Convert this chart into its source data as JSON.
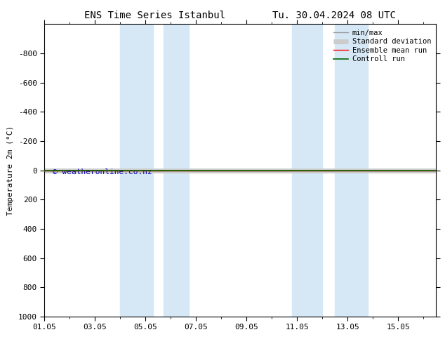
{
  "title_left": "ENS Time Series Istanbul",
  "title_right": "Tu. 30.04.2024 08 UTC",
  "ylabel": "Temperature 2m (°C)",
  "watermark": "© weatheronline.co.nz",
  "bg_color": "#ffffff",
  "plot_bg_color": "#ffffff",
  "shade_color": "#d6e8f5",
  "ylim_bottom": 1000,
  "ylim_top": -1000,
  "yticks": [
    -800,
    -600,
    -400,
    -200,
    0,
    200,
    400,
    600,
    800,
    1000
  ],
  "xlim": [
    0.0,
    15.5
  ],
  "xtick_labels": [
    "01.05",
    "03.05",
    "05.05",
    "07.05",
    "09.05",
    "11.05",
    "13.05",
    "15.05"
  ],
  "xtick_positions": [
    0,
    2,
    4,
    6,
    8,
    10,
    12,
    14
  ],
  "shaded_bands": [
    [
      3.0,
      4.3
    ],
    [
      4.7,
      5.7
    ],
    [
      9.8,
      11.0
    ],
    [
      11.5,
      12.8
    ]
  ],
  "legend_items": [
    {
      "label": "min/max",
      "color": "#999999",
      "lw": 1.0
    },
    {
      "label": "Standard deviation",
      "color": "#cccccc",
      "lw": 5
    },
    {
      "label": "Ensemble mean run",
      "color": "#ff0000",
      "lw": 1.0
    },
    {
      "label": "Controll run",
      "color": "#006600",
      "lw": 1.2
    }
  ],
  "title_fontsize": 10,
  "tick_fontsize": 8,
  "ylabel_fontsize": 8,
  "watermark_color": "#0000bb",
  "watermark_fontsize": 8
}
